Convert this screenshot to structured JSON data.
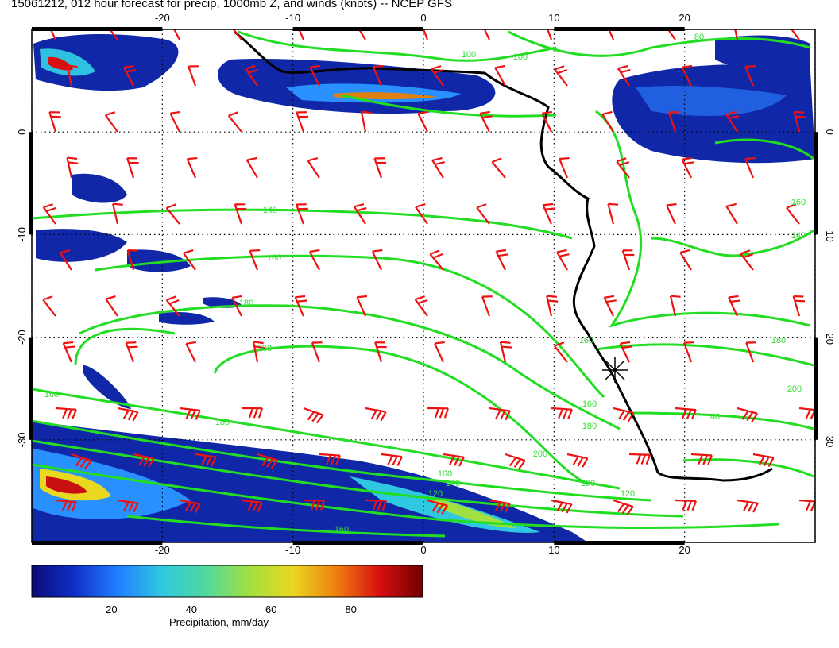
{
  "title": "15061212, 012 hour forecast for precip, 1000mb Z, and winds (knots) -- NCEP GFS",
  "map": {
    "lon_range": [
      -30,
      30
    ],
    "lat_range": [
      -40,
      10
    ],
    "grid": "dotted",
    "lon_ticks": [
      -20,
      -10,
      0,
      10,
      20
    ],
    "lat_ticks": [
      0,
      -10,
      -20,
      -30
    ],
    "contour_color": "#22dd22",
    "barb_color": "#ee1111",
    "coast_color": "#000000",
    "contour_labels": [
      "100",
      "100",
      "80",
      "140",
      "160",
      "180",
      "200",
      "160",
      "180",
      "200",
      "160",
      "140",
      "120",
      "140",
      "160",
      "180",
      "200",
      "40",
      "160",
      "160",
      "180",
      "200",
      "120",
      "160"
    ],
    "marker": "station-star"
  },
  "colorbar": {
    "label": "Precipitation, mm/day",
    "ticks": [
      "20",
      "40",
      "60",
      "80"
    ],
    "colors": [
      "#0a0a7a",
      "#1030c8",
      "#2080ff",
      "#30c8e0",
      "#50d8a0",
      "#a0e040",
      "#e8d820",
      "#f08010",
      "#d81010",
      "#700000"
    ]
  }
}
